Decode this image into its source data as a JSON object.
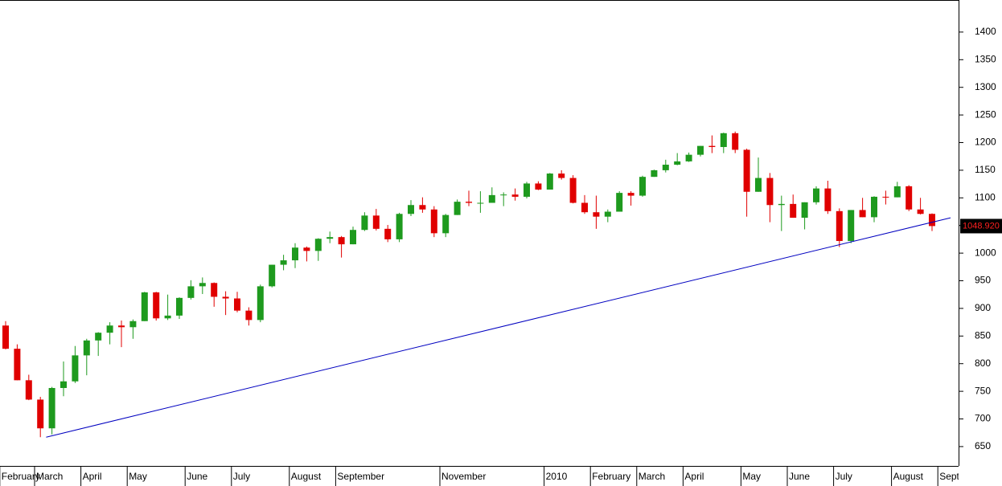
{
  "chart_data": {
    "type": "candlestick",
    "categories": [
      "February",
      null,
      null,
      "March",
      null,
      null,
      null,
      "April",
      null,
      null,
      null,
      "May",
      null,
      null,
      null,
      null,
      "June",
      null,
      null,
      null,
      "July",
      null,
      null,
      null,
      null,
      "August",
      null,
      null,
      null,
      "September",
      null,
      null,
      null,
      null,
      null,
      null,
      null,
      null,
      "November",
      null,
      null,
      null,
      null,
      null,
      null,
      null,
      null,
      "2010",
      null,
      null,
      null,
      "February",
      null,
      null,
      null,
      "March",
      null,
      null,
      null,
      "April",
      null,
      null,
      null,
      null,
      "May",
      null,
      null,
      null,
      "June",
      null,
      null,
      null,
      "July",
      null,
      null,
      null,
      null,
      "August",
      null,
      null,
      null,
      "September"
    ],
    "open": [
      869,
      827,
      770,
      735,
      683,
      756,
      768,
      815,
      842,
      856,
      869,
      866,
      877,
      929,
      882,
      887,
      919,
      940,
      946,
      921,
      918,
      896,
      879,
      940,
      979,
      987,
      1010,
      1004,
      1026,
      1029,
      1016,
      1042,
      1068,
      1044,
      1025,
      1071,
      1087,
      1079,
      1036,
      1069,
      1093,
      1091,
      1091,
      1105,
      1106,
      1102,
      1126,
      1115,
      1144,
      1136,
      1091,
      1074,
      1066,
      1075,
      1109,
      1104,
      1138,
      1150,
      1160,
      1166,
      1178,
      1194,
      1192,
      1217,
      1187,
      1111,
      1136,
      1087,
      1089,
      1064,
      1092,
      1117,
      1076,
      1022,
      1078,
      1065,
      1102,
      1101,
      1121,
      1079,
      1071,
      null
    ],
    "high": [
      877,
      835,
      780,
      740,
      758,
      804,
      832,
      845,
      857,
      875,
      878,
      880,
      930,
      930,
      925,
      920,
      951,
      956,
      947,
      931,
      930,
      902,
      943,
      979,
      997,
      1018,
      1012,
      1027,
      1039,
      1031,
      1048,
      1074,
      1080,
      1051,
      1073,
      1096,
      1101,
      1085,
      1071,
      1097,
      1113,
      1112,
      1119,
      1110,
      1117,
      1129,
      1130,
      1145,
      1150,
      1141,
      1105,
      1104,
      1079,
      1112,
      1112,
      1140,
      1151,
      1169,
      1181,
      1182,
      1194,
      1213,
      1218,
      1220,
      1189,
      1173,
      1145,
      1104,
      1106,
      1092,
      1121,
      1131,
      1081,
      1078,
      1100,
      1103,
      1113,
      1129,
      1123,
      1100,
      1072,
      null
    ],
    "low": [
      826,
      770,
      734,
      667,
      672,
      741,
      765,
      779,
      814,
      835,
      830,
      845,
      877,
      878,
      879,
      881,
      916,
      926,
      903,
      888,
      893,
      869,
      875,
      938,
      969,
      973,
      985,
      986,
      1018,
      992,
      1016,
      1040,
      1041,
      1020,
      1020,
      1067,
      1073,
      1029,
      1029,
      1069,
      1085,
      1073,
      1091,
      1085,
      1095,
      1099,
      1114,
      1115,
      1133,
      1090,
      1071,
      1044,
      1056,
      1075,
      1086,
      1102,
      1138,
      1146,
      1159,
      1165,
      1175,
      1181,
      1181,
      1181,
      1066,
      1111,
      1056,
      1040,
      1064,
      1043,
      1088,
      1071,
      1011,
      1018,
      1065,
      1056,
      1088,
      1101,
      1076,
      1070,
      1040,
      null
    ],
    "close": [
      827,
      770,
      735,
      683,
      756,
      768,
      815,
      842,
      856,
      869,
      866,
      877,
      929,
      882,
      887,
      919,
      940,
      946,
      921,
      918,
      896,
      879,
      940,
      979,
      987,
      1010,
      1004,
      1026,
      1029,
      1016,
      1042,
      1068,
      1044,
      1025,
      1071,
      1087,
      1079,
      1036,
      1069,
      1093,
      1091,
      1091,
      1105,
      1106,
      1102,
      1126,
      1115,
      1144,
      1136,
      1091,
      1074,
      1066,
      1075,
      1109,
      1104,
      1138,
      1150,
      1160,
      1166,
      1178,
      1194,
      1192,
      1217,
      1187,
      1111,
      1136,
      1087,
      1089,
      1064,
      1092,
      1117,
      1076,
      1022,
      1078,
      1065,
      1102,
      1101,
      1121,
      1079,
      1071,
      1049,
      null
    ],
    "up_color": "#1e9a1e",
    "down_color": "#e00000",
    "ylim": [
      615,
      1458
    ],
    "yticks": [
      650,
      700,
      750,
      800,
      850,
      900,
      950,
      1000,
      1050,
      1100,
      1150,
      1200,
      1250,
      1300,
      1350,
      1400
    ],
    "last_price": {
      "value": 1048.92,
      "label": "1048.920"
    },
    "trendline": {
      "x": [
        3.5,
        81.6
      ],
      "y": [
        667,
        1064
      ],
      "color": "#0000c0"
    }
  }
}
